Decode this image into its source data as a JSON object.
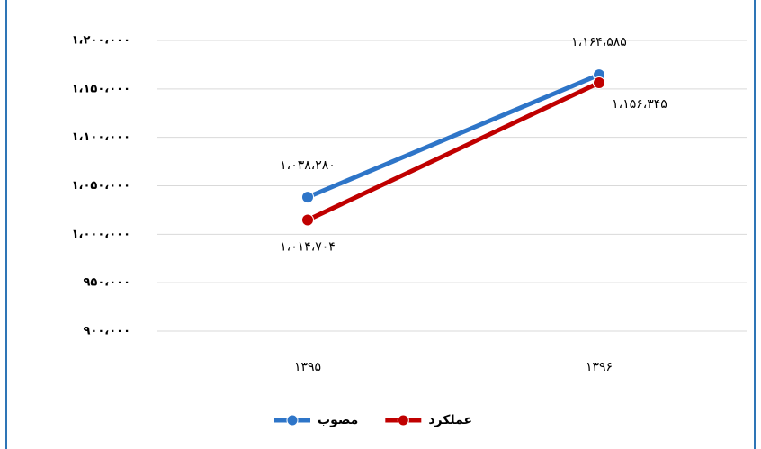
{
  "chart_data": {
    "type": "line",
    "categories": [
      "۱۳۹۵",
      "۱۳۹۶"
    ],
    "series": [
      {
        "name": "مصوب",
        "color": "#2e75c8",
        "values": [
          1038280,
          1164585
        ],
        "value_labels": [
          "۱،۰۳۸،۲۸۰",
          "۱،۱۶۴،۵۸۵"
        ]
      },
      {
        "name": "عملکرد",
        "color": "#c00000",
        "values": [
          1014704,
          1156345
        ],
        "value_labels": [
          "۱،۰۱۴،۷۰۴",
          "۱،۱۵۶،۳۴۵"
        ]
      }
    ],
    "ylim": [
      900000,
      1200000
    ],
    "yticks": [
      {
        "value": 900000,
        "label": "۹۰۰،۰۰۰"
      },
      {
        "value": 950000,
        "label": "۹۵۰،۰۰۰"
      },
      {
        "value": 1000000,
        "label": "۱،۰۰۰،۰۰۰"
      },
      {
        "value": 1050000,
        "label": "۱،۰۵۰،۰۰۰"
      },
      {
        "value": 1100000,
        "label": "۱،۱۰۰،۰۰۰"
      },
      {
        "value": 1150000,
        "label": "۱،۱۵۰،۰۰۰"
      },
      {
        "value": 1200000,
        "label": "۱،۲۰۰،۰۰۰"
      }
    ],
    "grid": true,
    "legend": "bottom"
  }
}
